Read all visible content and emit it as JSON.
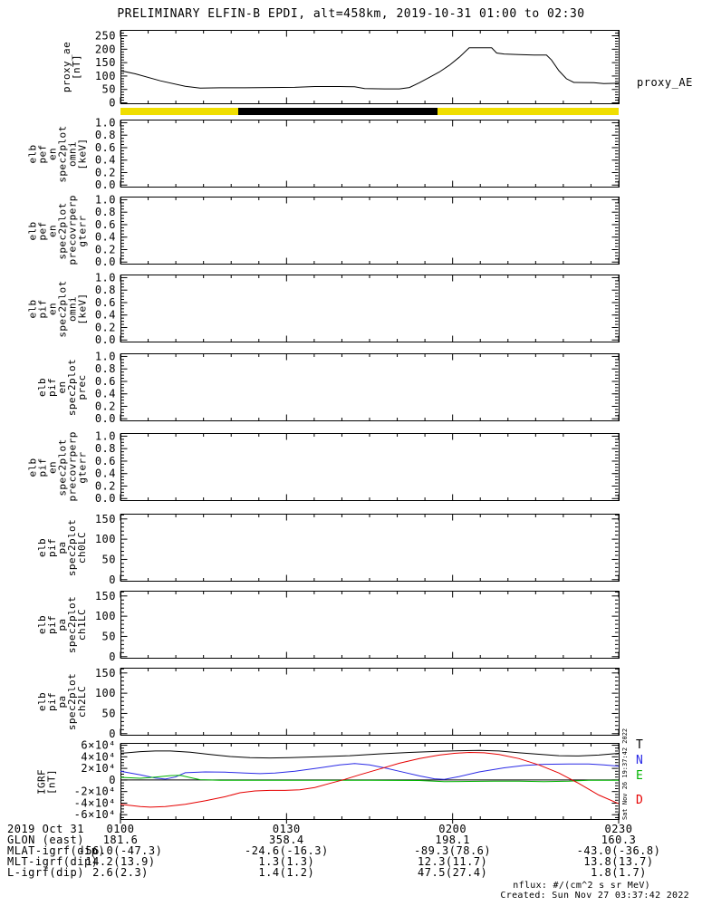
{
  "title": "PRELIMINARY ELFIN-B EPDI, alt=458km, 2019-10-31 01:00 to 02:30",
  "colors": {
    "background": "#ffffff",
    "frame": "#000000",
    "orbit_yellow": "#f0de00",
    "orbit_black": "#000000",
    "trace_black": "#000000",
    "trace_blue": "#2a2ae6",
    "trace_green": "#00b400",
    "trace_red": "#e60000"
  },
  "orbit_bar": {
    "segments": [
      {
        "start": 0.0,
        "end": 0.2364,
        "color": "#f0de00"
      },
      {
        "start": 0.2364,
        "end": 0.6364,
        "color": "#000000"
      },
      {
        "start": 0.6364,
        "end": 1.0,
        "color": "#f0de00"
      }
    ]
  },
  "right_margin": {
    "proxy_label": "proxy_AE",
    "vertical_timestamp": "Sat Nov 26 19:37:42 2022",
    "legend": [
      {
        "label": "T",
        "color": "#000000"
      },
      {
        "label": "N",
        "color": "#2a2ae6"
      },
      {
        "label": "E",
        "color": "#00b400"
      },
      {
        "label": "D",
        "color": "#e60000"
      }
    ]
  },
  "footer": {
    "nflux_units": "nflux: #/(cm^2 s sr MeV)",
    "created": "Created: Sun Nov 27 03:37:42 2022"
  },
  "bottom_axis": {
    "rows": [
      {
        "label": "2019 Oct 31",
        "values": [
          "0100",
          "0130",
          "0200",
          "0230"
        ]
      },
      {
        "label": "GLON (east)",
        "values": [
          "181.6",
          "358.4",
          "198.1",
          "160.3"
        ]
      },
      {
        "label": "MLAT-igrf(dip)",
        "values": [
          "-56.0(-47.3)",
          "-24.6(-16.3)",
          "-89.3(78.6)",
          "-43.0(-36.8)"
        ]
      },
      {
        "label": "MLT-igrf(dip)",
        "values": [
          "14.2(13.9)",
          "1.3(1.3)",
          "12.3(11.7)",
          "13.8(13.7)"
        ]
      },
      {
        "label": "L-igrf(dip)",
        "values": [
          "2.6(2.3)",
          "1.4(1.2)",
          "47.5(27.4)",
          "1.8(1.7)"
        ]
      }
    ]
  },
  "xaxis": {
    "major_fractions": [
      0,
      0.33333,
      0.66667,
      1
    ],
    "minor_divisions": 6,
    "tick_times": [
      "0100",
      "0130",
      "0200",
      "0230"
    ]
  },
  "chart_data": [
    {
      "id": "proxy-ae",
      "type": "line",
      "ylabel_lines": [
        "proxy_ae",
        "[nT]"
      ],
      "ylim": [
        -5,
        272
      ],
      "yticks": {
        "values": [
          0,
          50,
          100,
          150,
          200,
          250
        ],
        "labels": [
          "0",
          "50",
          "100",
          "150",
          "200",
          "250"
        ],
        "minor_divisions": 5
      },
      "series": [
        {
          "name": "proxy_AE",
          "color": "#000000",
          "x": [
            0,
            0.03,
            0.08,
            0.13,
            0.16,
            0.2,
            0.25,
            0.3,
            0.35,
            0.39,
            0.44,
            0.47,
            0.49,
            0.53,
            0.56,
            0.58,
            0.6,
            0.62,
            0.64,
            0.66,
            0.68,
            0.7,
            0.745,
            0.755,
            0.77,
            0.8,
            0.83,
            0.855,
            0.865,
            0.88,
            0.895,
            0.91,
            0.95,
            0.97,
            1.0
          ],
          "y": [
            120,
            108,
            82,
            62,
            55,
            56,
            56,
            57,
            58,
            61,
            61,
            60,
            53,
            52,
            52,
            57,
            75,
            95,
            115,
            140,
            170,
            205,
            205,
            186,
            182,
            180,
            178,
            178,
            160,
            120,
            90,
            76,
            75,
            72,
            73
          ]
        }
      ]
    },
    {
      "id": "pef-en-omni",
      "type": "spectrogram-empty",
      "ylabel_lines": [
        "elb",
        "pef",
        "en",
        "spec2plot",
        "omni",
        "[keV]"
      ],
      "ylim": [
        -0.04,
        1.05
      ],
      "yticks": {
        "values": [
          0,
          0.2,
          0.4,
          0.6,
          0.8,
          1.0
        ],
        "labels": [
          "0.0",
          "0.2",
          "0.4",
          "0.6",
          "0.8",
          "1.0"
        ],
        "minor_divisions": 4
      },
      "series": []
    },
    {
      "id": "pef-en-precovrperp-gterr",
      "type": "spectrogram-empty",
      "ylabel_lines": [
        "elb",
        "pef",
        "en",
        "spec2plot",
        "precovrperp",
        "gterr"
      ],
      "ylim": [
        -0.04,
        1.05
      ],
      "yticks": {
        "values": [
          0,
          0.2,
          0.4,
          0.6,
          0.8,
          1.0
        ],
        "labels": [
          "0.0",
          "0.2",
          "0.4",
          "0.6",
          "0.8",
          "1.0"
        ],
        "minor_divisions": 4
      },
      "series": []
    },
    {
      "id": "pif-en-omni",
      "type": "spectrogram-empty",
      "ylabel_lines": [
        "elb",
        "pif",
        "en",
        "spec2plot",
        "omni",
        "[keV]"
      ],
      "ylim": [
        -0.04,
        1.05
      ],
      "yticks": {
        "values": [
          0,
          0.2,
          0.4,
          0.6,
          0.8,
          1.0
        ],
        "labels": [
          "0.0",
          "0.2",
          "0.4",
          "0.6",
          "0.8",
          "1.0"
        ],
        "minor_divisions": 4
      },
      "series": []
    },
    {
      "id": "pif-en-prec",
      "type": "spectrogram-empty",
      "ylabel_lines": [
        "elb",
        "pif",
        "en",
        "spec2plot",
        "prec"
      ],
      "ylim": [
        -0.04,
        1.05
      ],
      "yticks": {
        "values": [
          0,
          0.2,
          0.4,
          0.6,
          0.8,
          1.0
        ],
        "labels": [
          "0.0",
          "0.2",
          "0.4",
          "0.6",
          "0.8",
          "1.0"
        ],
        "minor_divisions": 4
      },
      "series": []
    },
    {
      "id": "pif-en-precovrperp-gterr",
      "type": "spectrogram-empty",
      "ylabel_lines": [
        "elb",
        "pif",
        "en",
        "spec2plot",
        "precovrperp",
        "gterr"
      ],
      "ylim": [
        -0.04,
        1.05
      ],
      "yticks": {
        "values": [
          0,
          0.2,
          0.4,
          0.6,
          0.8,
          1.0
        ],
        "labels": [
          "0.0",
          "0.2",
          "0.4",
          "0.6",
          "0.8",
          "1.0"
        ],
        "minor_divisions": 4
      },
      "series": []
    },
    {
      "id": "pif-pa-ch0lc",
      "type": "spectrogram-empty",
      "ylabel_lines": [
        "elb",
        "pif",
        "pa",
        "spec2plot",
        "ch0LC"
      ],
      "ylim": [
        -5,
        163
      ],
      "yticks": {
        "values": [
          0,
          50,
          100,
          150
        ],
        "labels": [
          "0",
          "50",
          "100",
          "150"
        ],
        "minor_divisions": 5
      },
      "series": []
    },
    {
      "id": "pif-pa-ch1lc",
      "type": "spectrogram-empty",
      "ylabel_lines": [
        "elb",
        "pif",
        "pa",
        "spec2plot",
        "ch1LC"
      ],
      "ylim": [
        -5,
        163
      ],
      "yticks": {
        "values": [
          0,
          50,
          100,
          150
        ],
        "labels": [
          "0",
          "50",
          "100",
          "150"
        ],
        "minor_divisions": 5
      },
      "series": []
    },
    {
      "id": "pif-pa-ch2lc",
      "type": "spectrogram-empty",
      "ylabel_lines": [
        "elb",
        "pif",
        "pa",
        "spec2plot",
        "ch2LC"
      ],
      "ylim": [
        -5,
        163
      ],
      "yticks": {
        "values": [
          0,
          50,
          100,
          150
        ],
        "labels": [
          "0",
          "50",
          "100",
          "150"
        ],
        "minor_divisions": 5
      },
      "series": []
    },
    {
      "id": "igrf",
      "type": "line",
      "zero_line": true,
      "ylabel_lines": [
        "IGRF",
        "[nT]"
      ],
      "ylim": [
        -69000,
        64000
      ],
      "yticks": {
        "values": [
          -60000,
          -40000,
          -20000,
          0,
          20000,
          40000,
          60000
        ],
        "labels": [
          "-6×10⁴",
          "-4×10⁴",
          "-2×10⁴",
          "0",
          "2×10⁴",
          "4×10⁴",
          "6×10⁴"
        ],
        "minor_divisions": 4
      },
      "series": [
        {
          "name": "T",
          "color": "#000000",
          "x": [
            0,
            0.04,
            0.07,
            0.1,
            0.14,
            0.18,
            0.22,
            0.26,
            0.3,
            0.34,
            0.4,
            0.46,
            0.52,
            0.58,
            0.64,
            0.68,
            0.72,
            0.76,
            0.8,
            0.84,
            0.88,
            0.92,
            0.96,
            1.0
          ],
          "y": [
            46000,
            49000,
            50000,
            50000,
            48000,
            44000,
            40500,
            38500,
            38000,
            38500,
            40000,
            42000,
            45000,
            47500,
            49500,
            50500,
            51000,
            50000,
            47000,
            44500,
            42000,
            41500,
            43000,
            46000
          ]
        },
        {
          "name": "N",
          "color": "#2a2ae6",
          "x": [
            0,
            0.04,
            0.07,
            0.09,
            0.11,
            0.13,
            0.17,
            0.21,
            0.25,
            0.28,
            0.31,
            0.35,
            0.4,
            0.44,
            0.47,
            0.5,
            0.53,
            0.56,
            0.6,
            0.63,
            0.65,
            0.68,
            0.72,
            0.77,
            0.81,
            0.85,
            0.9,
            0.94,
            0.97,
            1.0
          ],
          "y": [
            15000,
            9000,
            3500,
            1500,
            5000,
            12500,
            14000,
            13500,
            12000,
            11000,
            12000,
            15000,
            21000,
            26000,
            28500,
            26000,
            21000,
            15000,
            7000,
            2000,
            1000,
            6000,
            14000,
            21000,
            25000,
            27000,
            27500,
            27500,
            26000,
            24000
          ]
        },
        {
          "name": "E",
          "color": "#00b400",
          "x": [
            0,
            0.04,
            0.07,
            0.1,
            0.12,
            0.14,
            0.16,
            0.2,
            0.3,
            0.4,
            0.5,
            0.6,
            0.65,
            0.7,
            0.75,
            0.8,
            0.85,
            0.9,
            0.94,
            1.0
          ],
          "y": [
            4500,
            3000,
            5000,
            7500,
            8000,
            4000,
            500,
            -500,
            -500,
            -500,
            -500,
            -1000,
            -3000,
            -2500,
            -2000,
            -2000,
            -3000,
            -2000,
            -500,
            -500
          ]
        },
        {
          "name": "D",
          "color": "#e60000",
          "x": [
            0,
            0.04,
            0.06,
            0.09,
            0.13,
            0.17,
            0.21,
            0.24,
            0.27,
            0.3,
            0.33,
            0.36,
            0.39,
            0.42,
            0.45,
            0.48,
            0.52,
            0.56,
            0.6,
            0.64,
            0.67,
            0.7,
            0.73,
            0.76,
            0.8,
            0.84,
            0.88,
            0.92,
            0.96,
            1.0
          ],
          "y": [
            -42000,
            -46000,
            -47000,
            -46000,
            -42000,
            -36000,
            -29000,
            -22000,
            -19000,
            -18000,
            -18000,
            -17000,
            -13000,
            -6000,
            1000,
            9000,
            19000,
            29000,
            37000,
            43000,
            46000,
            47500,
            47000,
            44000,
            37000,
            26000,
            12000,
            -6000,
            -26000,
            -41000
          ]
        }
      ]
    }
  ]
}
